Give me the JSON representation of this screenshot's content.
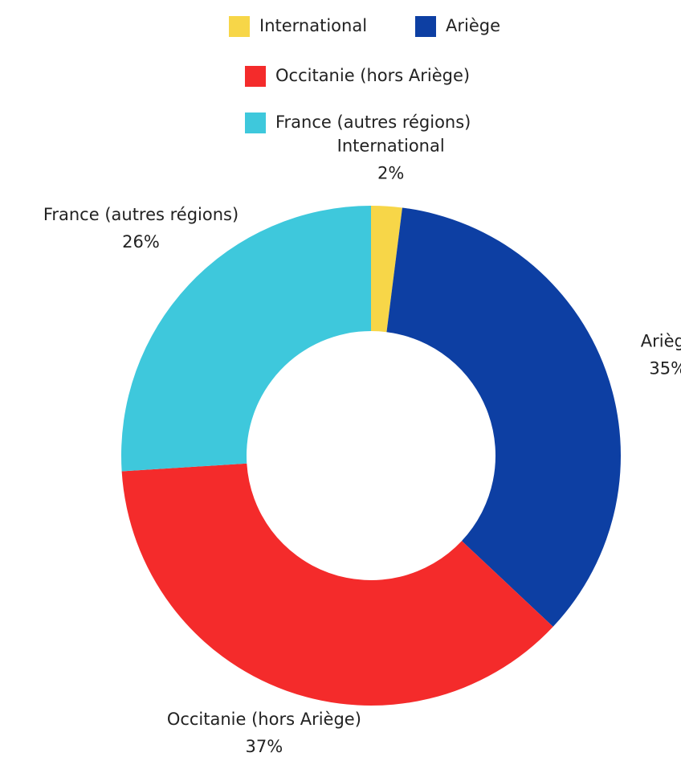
{
  "chart_data": {
    "type": "donut",
    "categories": [
      "International",
      "Ariège",
      "Occitanie (hors Ariège)",
      "France (autres régions)"
    ],
    "values": [
      2,
      35,
      37,
      26
    ],
    "value_labels": [
      "2%",
      "35%",
      "37%",
      "26%"
    ],
    "colors": [
      "#f7d648",
      "#0d3fa3",
      "#f42b2b",
      "#3ec8dc"
    ],
    "legend": "top"
  }
}
